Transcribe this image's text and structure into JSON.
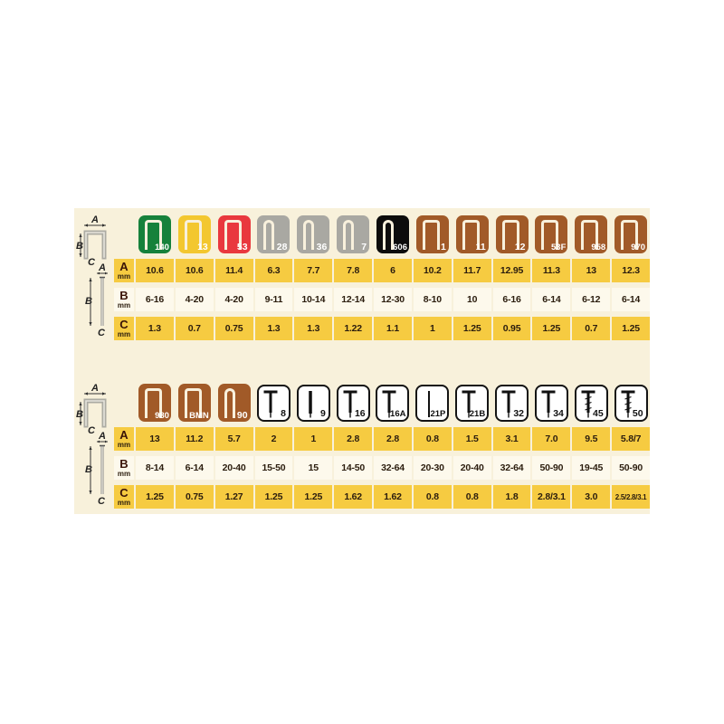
{
  "colors": {
    "panel_background": "#F8F1DB",
    "cell_yellow": "#F6CB41",
    "row_b_background": "#FDF9EC",
    "staple_outline": "#F8F0DC",
    "icon_green": "#16813B",
    "icon_yellow": "#F3C72F",
    "icon_red": "#E9383E",
    "icon_gray": "#A9A8A2",
    "icon_black": "#0C0C0C",
    "icon_brown": "#A15A28",
    "icon_white": "#FFFFFF"
  },
  "row_labels": [
    {
      "letter": "A",
      "unit": "mm"
    },
    {
      "letter": "B",
      "unit": "mm"
    },
    {
      "letter": "C",
      "unit": "mm"
    }
  ],
  "diagram": {
    "a": "A",
    "b": "B",
    "c": "C"
  },
  "chart_data": [
    {
      "type": "table",
      "title": "staple-types-top",
      "row_labels": [
        "A mm",
        "B mm",
        "C mm"
      ],
      "columns": [
        {
          "label": "140",
          "icon": "staple_wide",
          "color": "#16813B",
          "values": [
            "10.6",
            "6-16",
            "1.3"
          ]
        },
        {
          "label": "13",
          "icon": "staple_wide",
          "color": "#F3C72F",
          "values": [
            "10.6",
            "4-20",
            "0.7"
          ]
        },
        {
          "label": "53",
          "icon": "staple_wide",
          "color": "#E9383E",
          "values": [
            "11.4",
            "4-20",
            "0.75"
          ]
        },
        {
          "label": "28",
          "icon": "staple_narrow",
          "color": "#A9A8A2",
          "values": [
            "6.3",
            "9-11",
            "1.3"
          ]
        },
        {
          "label": "36",
          "icon": "staple_narrow",
          "color": "#A9A8A2",
          "values": [
            "7.7",
            "10-14",
            "1.3"
          ]
        },
        {
          "label": "7",
          "icon": "staple_narrow",
          "color": "#A9A8A2",
          "values": [
            "7.8",
            "12-14",
            "1.22"
          ]
        },
        {
          "label": "606",
          "icon": "staple_narrow",
          "color": "#0C0C0C",
          "values": [
            "6",
            "12-30",
            "1.1"
          ]
        },
        {
          "label": "1",
          "icon": "staple_wide",
          "color": "#A15A28",
          "values": [
            "10.2",
            "8-10",
            "1"
          ]
        },
        {
          "label": "11",
          "icon": "staple_wide",
          "color": "#A15A28",
          "values": [
            "11.7",
            "10",
            "1.25"
          ]
        },
        {
          "label": "12",
          "icon": "staple_wide",
          "color": "#A15A28",
          "values": [
            "12.95",
            "6-16",
            "0.95"
          ]
        },
        {
          "label": "53F",
          "icon": "staple_wide",
          "color": "#A15A28",
          "values": [
            "11.3",
            "6-14",
            "1.25"
          ]
        },
        {
          "label": "958",
          "icon": "staple_wide",
          "color": "#A15A28",
          "values": [
            "13",
            "6-12",
            "0.7"
          ]
        },
        {
          "label": "970",
          "icon": "staple_wide",
          "color": "#A15A28",
          "values": [
            "12.3",
            "6-14",
            "1.25"
          ]
        }
      ]
    },
    {
      "type": "table",
      "title": "staple-and-nail-types-bottom",
      "row_labels": [
        "A mm",
        "B mm",
        "C mm"
      ],
      "columns": [
        {
          "label": "980",
          "icon": "staple_wide",
          "color": "#A15A28",
          "values": [
            "13",
            "8-14",
            "1.25"
          ]
        },
        {
          "label": "BMN",
          "icon": "staple_wide",
          "color": "#A15A28",
          "values": [
            "11.2",
            "6-14",
            "0.75"
          ]
        },
        {
          "label": "90",
          "icon": "staple_narrow",
          "color": "#A15A28",
          "values": [
            "5.7",
            "20-40",
            "1.27"
          ]
        },
        {
          "label": "8",
          "icon": "nail",
          "color": "#FFFFFF",
          "values": [
            "2",
            "15-50",
            "1.25"
          ]
        },
        {
          "label": "9",
          "icon": "pin",
          "color": "#FFFFFF",
          "values": [
            "1",
            "15",
            "1.25"
          ]
        },
        {
          "label": "16",
          "icon": "nail",
          "color": "#FFFFFF",
          "values": [
            "2.8",
            "14-50",
            "1.62"
          ]
        },
        {
          "label": "16A",
          "icon": "nail",
          "color": "#FFFFFF",
          "values": [
            "2.8",
            "32-64",
            "1.62"
          ]
        },
        {
          "label": "21P",
          "icon": "pin_thin",
          "color": "#FFFFFF",
          "values": [
            "0.8",
            "20-30",
            "0.8"
          ]
        },
        {
          "label": "21B",
          "icon": "nail",
          "color": "#FFFFFF",
          "values": [
            "1.5",
            "20-40",
            "0.8"
          ]
        },
        {
          "label": "32",
          "icon": "nail",
          "color": "#FFFFFF",
          "values": [
            "3.1",
            "32-64",
            "1.8"
          ]
        },
        {
          "label": "34",
          "icon": "nail",
          "color": "#FFFFFF",
          "values": [
            "7.0",
            "50-90",
            "2.8/3.1"
          ]
        },
        {
          "label": "45",
          "icon": "nail_serrated",
          "color": "#FFFFFF",
          "values": [
            "9.5",
            "19-45",
            "3.0"
          ]
        },
        {
          "label": "50",
          "icon": "nail_serrated",
          "color": "#FFFFFF",
          "values": [
            "5.8/7",
            "50-90",
            "2.5/2.8/3.1"
          ]
        }
      ]
    }
  ]
}
